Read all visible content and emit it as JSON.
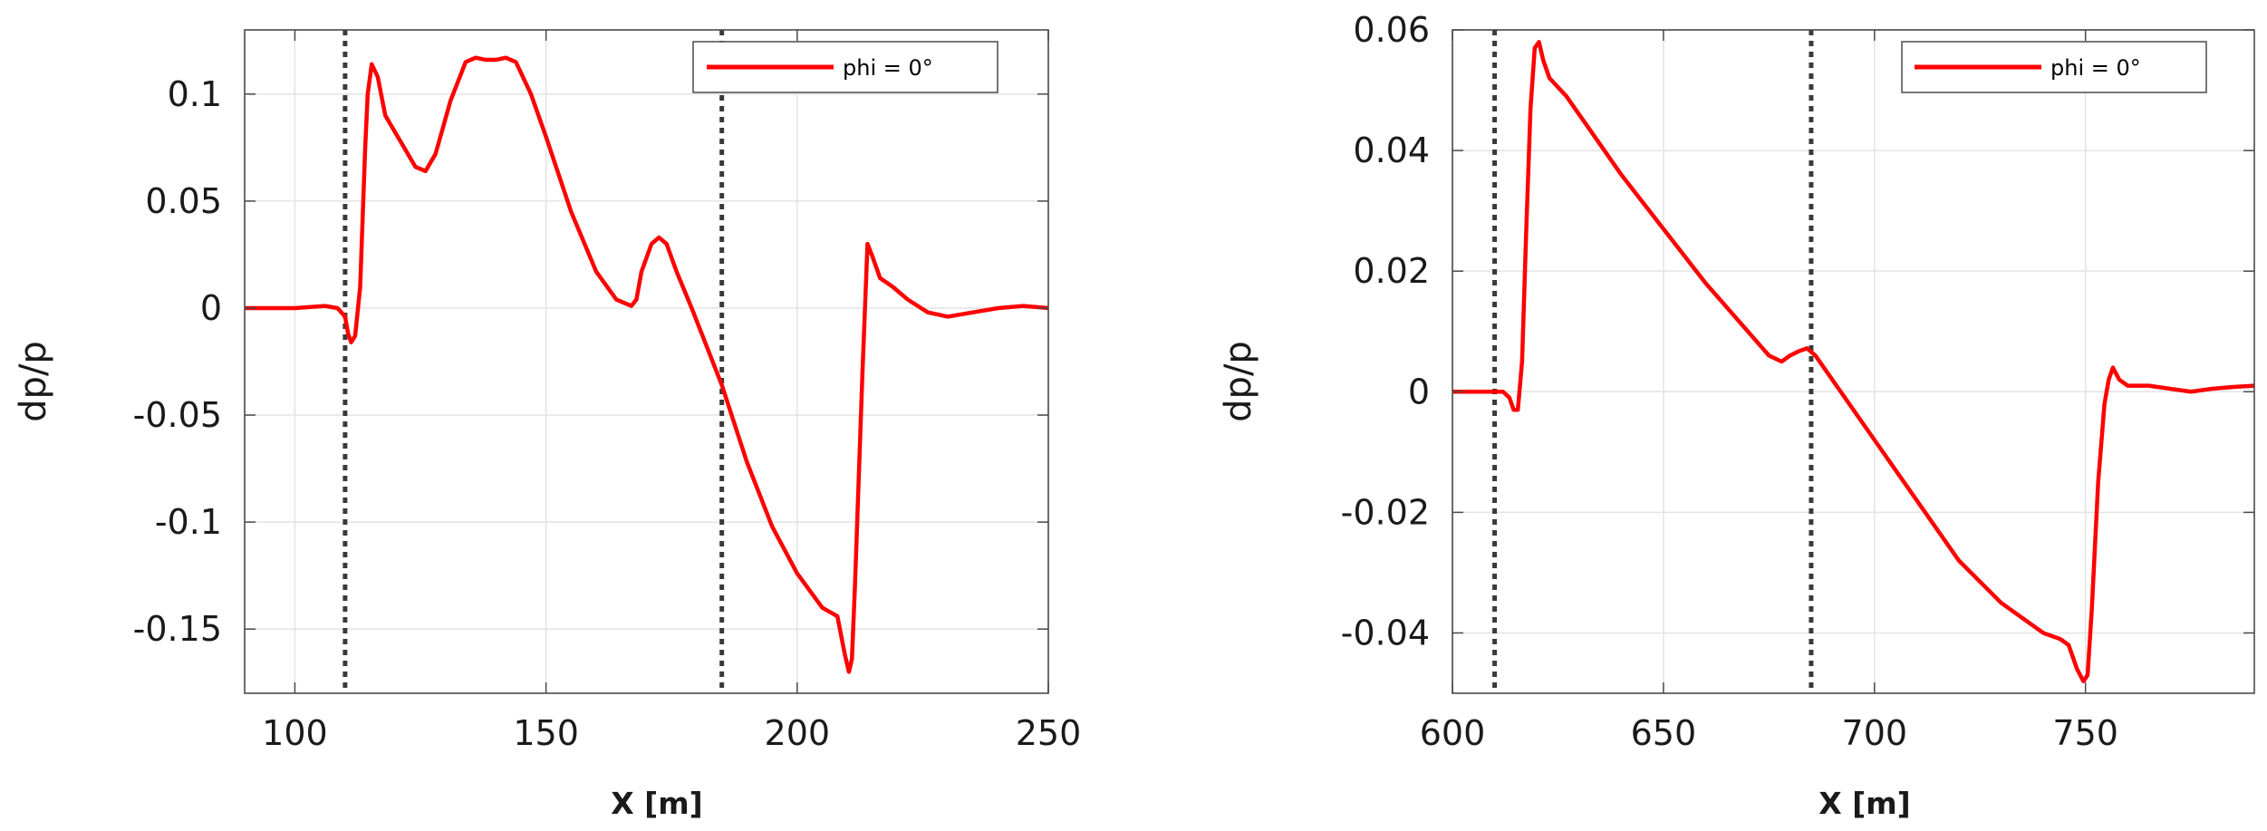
{
  "chart_data": [
    {
      "type": "line",
      "xlabel": "X [m]",
      "ylabel": "dp/p",
      "xlim": [
        90,
        250
      ],
      "ylim": [
        -0.18,
        0.13
      ],
      "xticks": [
        100,
        150,
        200,
        250
      ],
      "xtick_labels": [
        "100",
        "150",
        "200",
        "250"
      ],
      "yticks": [
        0.1,
        0.05,
        0,
        -0.05,
        -0.1,
        -0.15
      ],
      "ytick_labels": [
        "0.1",
        "0.05",
        "0",
        "-0.05",
        "-0.1",
        "-0.15"
      ],
      "grid": true,
      "legend": "top-right",
      "vlines": [
        110,
        185
      ],
      "series": [
        {
          "name": "phi = 0°",
          "color": "#ff0000",
          "x": [
            90,
            100,
            106,
            108.5,
            110,
            110.6,
            111.2,
            112,
            113,
            114,
            114.5,
            115.3,
            116.5,
            118,
            121,
            124,
            126,
            128,
            131,
            134,
            136,
            138,
            140,
            142,
            144,
            147,
            150,
            155,
            160,
            164,
            166,
            167,
            168,
            169,
            171,
            172.5,
            174,
            176,
            179,
            182,
            185,
            190,
            195,
            200,
            205,
            206.5,
            208,
            209.5,
            210.3,
            210.9,
            211.5,
            213,
            214,
            215,
            216.5,
            219,
            222,
            226,
            230,
            235,
            240,
            245,
            250
          ],
          "y": [
            0,
            0,
            0.001,
            0,
            -0.004,
            -0.012,
            -0.016,
            -0.013,
            0.01,
            0.075,
            0.1,
            0.114,
            0.108,
            0.09,
            0.078,
            0.066,
            0.064,
            0.072,
            0.097,
            0.115,
            0.117,
            0.116,
            0.116,
            0.117,
            0.115,
            0.1,
            0.08,
            0.045,
            0.017,
            0.004,
            0.002,
            0.001,
            0.004,
            0.017,
            0.03,
            0.033,
            0.03,
            0.017,
            0,
            -0.018,
            -0.036,
            -0.072,
            -0.102,
            -0.124,
            -0.14,
            -0.142,
            -0.144,
            -0.162,
            -0.17,
            -0.164,
            -0.13,
            -0.03,
            0.03,
            0.024,
            0.014,
            0.01,
            0.004,
            -0.002,
            -0.004,
            -0.002,
            0,
            0.001,
            0
          ]
        }
      ]
    },
    {
      "type": "line",
      "xlabel": "X [m]",
      "ylabel": "dp/p",
      "xlim": [
        600,
        790
      ],
      "ylim": [
        -0.05,
        0.06
      ],
      "xticks": [
        600,
        650,
        700,
        750
      ],
      "xtick_labels": [
        "600",
        "650",
        "700",
        "750"
      ],
      "yticks": [
        0.06,
        0.04,
        0.02,
        0,
        -0.02,
        -0.04
      ],
      "ytick_labels": [
        "0.06",
        "0.04",
        "0.02",
        "0",
        "-0.02",
        "-0.04"
      ],
      "grid": true,
      "legend": "top-right",
      "vlines": [
        610,
        685
      ],
      "series": [
        {
          "name": "phi = 0°",
          "color": "#ff0000",
          "x": [
            600,
            608,
            612,
            613.5,
            614.5,
            615.5,
            616.5,
            617.5,
            618.5,
            619.5,
            620.5,
            621.5,
            623,
            627,
            632,
            640,
            650,
            660,
            670,
            675,
            678,
            680,
            682,
            684,
            686,
            690,
            700,
            710,
            720,
            730,
            740,
            744,
            746,
            748,
            749.5,
            750.5,
            751.5,
            753,
            754.5,
            755.5,
            756.5,
            758,
            760,
            765,
            770,
            775,
            780,
            785,
            790
          ],
          "y": [
            0,
            0,
            0,
            -0.001,
            -0.003,
            -0.003,
            0.005,
            0.027,
            0.047,
            0.057,
            0.058,
            0.055,
            0.052,
            0.049,
            0.044,
            0.036,
            0.027,
            0.018,
            0.01,
            0.006,
            0.005,
            0.006,
            0.0067,
            0.0072,
            0.006,
            0.002,
            -0.008,
            -0.018,
            -0.028,
            -0.035,
            -0.04,
            -0.041,
            -0.042,
            -0.046,
            -0.048,
            -0.047,
            -0.036,
            -0.015,
            -0.002,
            0.002,
            0.004,
            0.002,
            0.001,
            0.001,
            0.0005,
            0,
            0.0005,
            0.0008,
            0.001
          ]
        }
      ]
    }
  ]
}
